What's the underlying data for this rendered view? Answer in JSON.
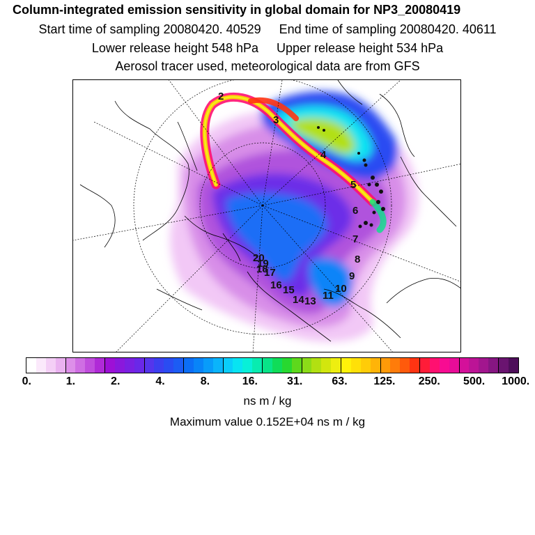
{
  "header": {
    "title": "Column-integrated emission sensitivity in global domain for NP3_20080419",
    "start_label": "Start time of sampling 20080420. 40529",
    "end_label": "End time of sampling 20080420. 40611",
    "lower_label": "Lower release height  548 hPa",
    "upper_label": "Upper release height  534 hPa",
    "tracer_note": "Aerosol tracer used, meteorological data are from GFS"
  },
  "map": {
    "projection": "polar stereographic",
    "plume_day_labels": [
      "2",
      "3",
      "4",
      "5",
      "6",
      "7",
      "8",
      "9",
      "10",
      "11",
      "13",
      "14",
      "15",
      "16",
      "17",
      "18",
      "19",
      "20"
    ]
  },
  "colorbar": {
    "tick_labels": [
      "0.",
      "1.",
      "2.",
      "4.",
      "8.",
      "16.",
      "31.",
      "63.",
      "125.",
      "250.",
      "500.",
      "1000."
    ],
    "colors": [
      "#ffffff",
      "#fbe9fb",
      "#f4cff6",
      "#eab2f0",
      "#dd8fe9",
      "#cf6ee3",
      "#c04ddd",
      "#b02ad7",
      "#9d10d6",
      "#8a18dc",
      "#7a20e2",
      "#6a28e8",
      "#5535ec",
      "#3c3fef",
      "#2a4cf2",
      "#1c5cf4",
      "#0c6ef6",
      "#0884f8",
      "#089cfa",
      "#0ab4fb",
      "#0acdfb",
      "#08e4f2",
      "#08f0d8",
      "#08ecb0",
      "#08e488",
      "#10dc58",
      "#28d830",
      "#5ed81c",
      "#8cdc18",
      "#b2e012",
      "#d2e60e",
      "#eeee10",
      "#fff20a",
      "#ffe008",
      "#ffcc08",
      "#ffb408",
      "#ff9a08",
      "#ff7c0a",
      "#ff5a0c",
      "#ff3412",
      "#ff1c38",
      "#ff1070",
      "#f80c92",
      "#e80c98",
      "#d4109a",
      "#bc1496",
      "#a2168e",
      "#861682",
      "#6a1470",
      "#4e0e5a"
    ],
    "unit_label": "ns m / kg",
    "max_value_label": "Maximum value  0.152E+04 ns m / kg"
  }
}
